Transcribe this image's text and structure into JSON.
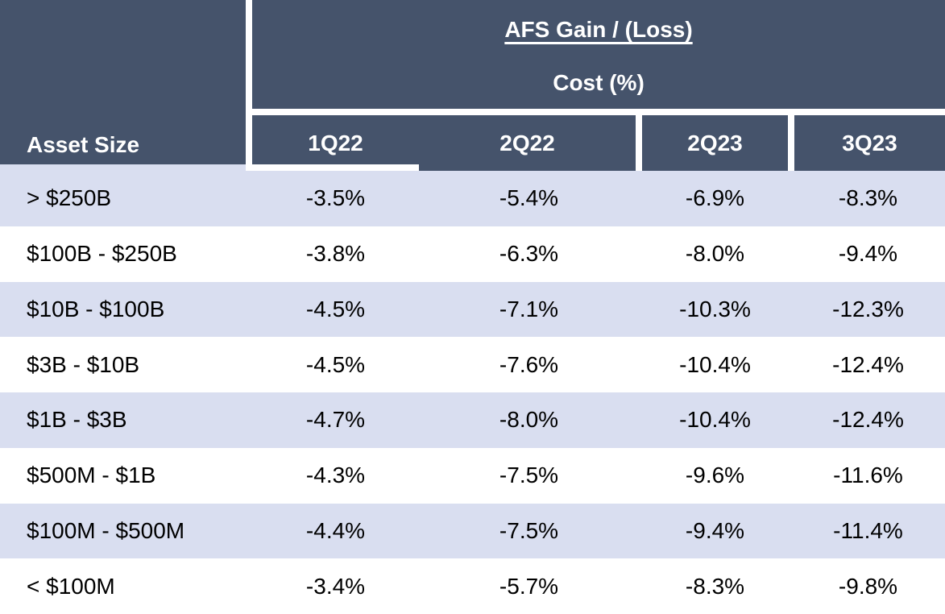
{
  "table": {
    "corner_header": "Asset Size",
    "merged_header": {
      "line1": "AFS Gain / (Loss)",
      "line2": "Cost (%)"
    },
    "quarter_headers": [
      "1Q22",
      "2Q22",
      "2Q23",
      "3Q23"
    ],
    "rows": [
      {
        "label": "> $250B",
        "values": [
          "-3.5%",
          "-5.4%",
          "-6.9%",
          "-8.3%"
        ]
      },
      {
        "label": "$100B - $250B",
        "values": [
          "-3.8%",
          "-6.3%",
          "-8.0%",
          "-9.4%"
        ]
      },
      {
        "label": "$10B - $100B",
        "values": [
          "-4.5%",
          "-7.1%",
          "-10.3%",
          "-12.3%"
        ]
      },
      {
        "label": "$3B - $10B",
        "values": [
          "-4.5%",
          "-7.6%",
          "-10.4%",
          "-12.4%"
        ]
      },
      {
        "label": "$1B - $3B",
        "values": [
          "-4.7%",
          "-8.0%",
          "-10.4%",
          "-12.4%"
        ]
      },
      {
        "label": "$500M - $1B",
        "values": [
          "-4.3%",
          "-7.5%",
          "-9.6%",
          "-11.6%"
        ]
      },
      {
        "label": "$100M - $500M",
        "values": [
          "-4.4%",
          "-7.5%",
          "-9.4%",
          "-11.4%"
        ]
      },
      {
        "label": "< $100M",
        "values": [
          "-3.4%",
          "-5.7%",
          "-8.3%",
          "-9.8%"
        ]
      }
    ]
  },
  "colors": {
    "header_bg": "#45536B",
    "row_stripe_bg": "#D9DEF0",
    "row_plain_bg": "#FFFFFF",
    "header_text": "#FFFFFF",
    "body_text": "#000000"
  },
  "chart_data": {
    "type": "table",
    "title": "AFS Gain / (Loss) Cost (%)",
    "row_header": "Asset Size",
    "columns": [
      "1Q22",
      "2Q22",
      "2Q23",
      "3Q23"
    ],
    "categories": [
      "> $250B",
      "$100B - $250B",
      "$10B - $100B",
      "$3B - $10B",
      "$1B - $3B",
      "$500M - $1B",
      "$100M - $500M",
      "< $100M"
    ],
    "series": [
      {
        "name": "1Q22",
        "values": [
          -3.5,
          -3.8,
          -4.5,
          -4.5,
          -4.7,
          -4.3,
          -4.4,
          -3.4
        ]
      },
      {
        "name": "2Q22",
        "values": [
          -5.4,
          -6.3,
          -7.1,
          -7.6,
          -8.0,
          -7.5,
          -7.5,
          -5.7
        ]
      },
      {
        "name": "2Q23",
        "values": [
          -6.9,
          -8.0,
          -10.3,
          -10.4,
          -10.4,
          -9.6,
          -9.4,
          -8.3
        ]
      },
      {
        "name": "3Q23",
        "values": [
          -8.3,
          -9.4,
          -12.3,
          -12.4,
          -12.4,
          -11.6,
          -11.4,
          -9.8
        ]
      }
    ],
    "units": "%"
  }
}
